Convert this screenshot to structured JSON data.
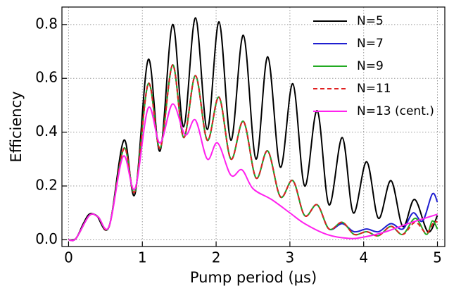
{
  "chart_data": {
    "type": "line",
    "xlabel": "Pump period (μs)",
    "ylabel": "Efficiency",
    "xlim": [
      -0.09,
      5.1
    ],
    "ylim": [
      -0.025,
      0.865
    ],
    "xticks": [
      0,
      1,
      2,
      3,
      4,
      5
    ],
    "yticks": [
      {
        "value": 0,
        "label": "0.0"
      },
      0.2,
      0.4,
      0.6,
      0.8
    ],
    "grid": true,
    "legend": "upper right",
    "series": [
      {
        "name": "N=5",
        "color": "#000000",
        "dash": "solid",
        "x": [
          0,
          0.1,
          0.2,
          0.28,
          0.38,
          0.55,
          0.75,
          0.9,
          1.08,
          1.24,
          1.41,
          1.56,
          1.72,
          1.88,
          2.04,
          2.2,
          2.37,
          2.54,
          2.7,
          2.87,
          3.04,
          3.2,
          3.37,
          3.53,
          3.71,
          3.86,
          4.04,
          4.2,
          4.37,
          4.53,
          4.69,
          4.87,
          5.0
        ],
        "values": [
          0,
          0.005,
          0.06,
          0.095,
          0.09,
          0.05,
          0.37,
          0.17,
          0.67,
          0.33,
          0.8,
          0.42,
          0.825,
          0.41,
          0.81,
          0.37,
          0.76,
          0.3,
          0.68,
          0.27,
          0.58,
          0.2,
          0.48,
          0.13,
          0.38,
          0.1,
          0.29,
          0.08,
          0.22,
          0.05,
          0.15,
          0.03,
          0.09
        ]
      },
      {
        "name": "N=7",
        "color": "#1f1fd0",
        "dash": "solid",
        "x": [
          0,
          0.1,
          0.28,
          0.4,
          0.55,
          0.75,
          0.9,
          1.08,
          1.24,
          1.41,
          1.56,
          1.72,
          1.88,
          2.04,
          2.2,
          2.37,
          2.54,
          2.7,
          2.87,
          3.04,
          3.2,
          3.37,
          3.53,
          3.71,
          3.87,
          4.04,
          4.2,
          4.37,
          4.53,
          4.67,
          4.8,
          4.93,
          5.0
        ],
        "values": [
          0,
          0.005,
          0.09,
          0.085,
          0.05,
          0.34,
          0.18,
          0.58,
          0.34,
          0.65,
          0.38,
          0.61,
          0.37,
          0.53,
          0.3,
          0.44,
          0.23,
          0.33,
          0.16,
          0.22,
          0.09,
          0.13,
          0.04,
          0.06,
          0.03,
          0.04,
          0.03,
          0.06,
          0.04,
          0.1,
          0.07,
          0.17,
          0.14
        ]
      },
      {
        "name": "N=9",
        "color": "#22aa22",
        "dash": "solid",
        "x": [
          0,
          0.1,
          0.28,
          0.4,
          0.55,
          0.75,
          0.9,
          1.08,
          1.24,
          1.41,
          1.56,
          1.72,
          1.88,
          2.04,
          2.2,
          2.37,
          2.54,
          2.7,
          2.87,
          3.04,
          3.2,
          3.37,
          3.53,
          3.71,
          3.87,
          4.04,
          4.2,
          4.37,
          4.53,
          4.7,
          4.85,
          4.93,
          5.0
        ],
        "values": [
          0,
          0.005,
          0.09,
          0.085,
          0.05,
          0.34,
          0.18,
          0.58,
          0.34,
          0.65,
          0.38,
          0.61,
          0.37,
          0.53,
          0.3,
          0.44,
          0.23,
          0.33,
          0.16,
          0.22,
          0.09,
          0.13,
          0.04,
          0.065,
          0.02,
          0.03,
          0.015,
          0.05,
          0.02,
          0.08,
          0.02,
          0.07,
          0.04
        ]
      },
      {
        "name": "N=11",
        "color": "#e02020",
        "dash": "dashed",
        "x": [
          0,
          0.1,
          0.28,
          0.4,
          0.55,
          0.75,
          0.9,
          1.08,
          1.24,
          1.41,
          1.56,
          1.72,
          1.88,
          2.04,
          2.2,
          2.37,
          2.54,
          2.7,
          2.87,
          3.04,
          3.2,
          3.37,
          3.53,
          3.71,
          3.87,
          4.04,
          4.2,
          4.37,
          4.53,
          4.7,
          4.85,
          4.95,
          5.0
        ],
        "values": [
          0,
          0.005,
          0.09,
          0.085,
          0.05,
          0.34,
          0.18,
          0.58,
          0.34,
          0.65,
          0.38,
          0.61,
          0.37,
          0.53,
          0.3,
          0.44,
          0.23,
          0.33,
          0.16,
          0.22,
          0.09,
          0.13,
          0.04,
          0.065,
          0.02,
          0.03,
          0.015,
          0.05,
          0.02,
          0.065,
          0.025,
          0.065,
          0.065
        ]
      },
      {
        "name": "N=13 (cent.)",
        "color": "#ff22ee",
        "dash": "solid",
        "x": [
          0,
          0.1,
          0.28,
          0.4,
          0.55,
          0.74,
          0.9,
          1.08,
          1.24,
          1.41,
          1.58,
          1.72,
          1.88,
          2.02,
          2.2,
          2.35,
          2.5,
          2.75,
          3.0,
          3.2,
          3.5,
          3.8,
          4.0,
          4.3,
          4.6,
          5.0
        ],
        "values": [
          0,
          0.005,
          0.09,
          0.085,
          0.05,
          0.31,
          0.19,
          0.49,
          0.36,
          0.505,
          0.39,
          0.445,
          0.3,
          0.36,
          0.24,
          0.26,
          0.19,
          0.15,
          0.1,
          0.06,
          0.02,
          0.005,
          0.01,
          0.03,
          0.06,
          0.095
        ]
      }
    ]
  }
}
